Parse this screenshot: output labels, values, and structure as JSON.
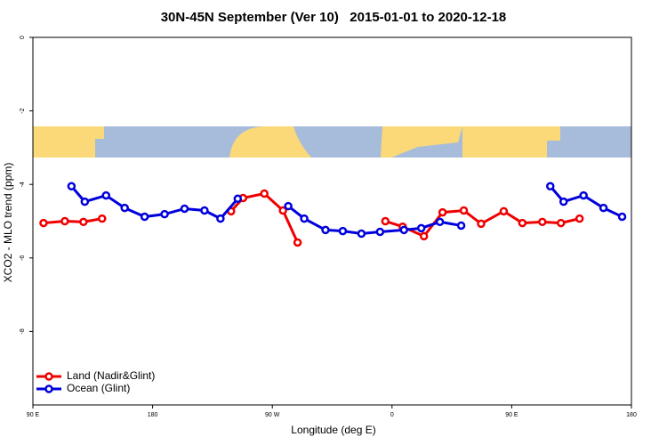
{
  "chart_data": {
    "type": "line",
    "title": "30N-45N September (Ver 10)   2015-01-01 to 2020-12-18",
    "x_label": "Longitude (deg E)",
    "y_label": "XCO2 - MLO trend (ppm)",
    "xlim": [
      90,
      540
    ],
    "xticks": [
      {
        "value": 90,
        "label": "90 E"
      },
      180,
      {
        "value": 270,
        "label": "90 W"
      },
      {
        "value": 360,
        "label": "0"
      },
      {
        "value": 450,
        "label": "90 E"
      },
      {
        "value": 540,
        "label": "180"
      }
    ],
    "ylim": [
      -10,
      0
    ],
    "yticks": [
      0,
      -2,
      -4,
      -6,
      -8
    ],
    "legend": "bottom-left",
    "series": [
      {
        "name": "Land (Nadir&Glint)",
        "color": "#ee0000",
        "x": [
          98,
          114,
          128,
          142,
          null,
          239,
          248,
          264,
          278,
          289,
          null,
          355,
          368,
          384,
          398,
          414,
          427,
          444,
          458,
          473,
          487,
          501
        ],
        "values": [
          -5.05,
          -5.0,
          -5.02,
          -4.93,
          null,
          -4.73,
          -4.37,
          -4.25,
          -4.71,
          -5.58,
          null,
          -5.0,
          -5.15,
          -5.41,
          -4.76,
          -4.71,
          -5.07,
          -4.73,
          -5.05,
          -5.02,
          -5.05,
          -4.93
        ]
      },
      {
        "name": "Ocean (Glint)",
        "color": "#0000dd",
        "x": [
          119,
          129,
          145,
          159,
          174,
          189,
          204,
          219,
          231,
          244,
          null,
          282,
          294,
          310,
          323,
          337,
          351,
          369,
          382,
          396,
          412,
          null,
          479,
          489,
          504,
          519,
          533
        ],
        "values": [
          -4.05,
          -4.47,
          -4.3,
          -4.64,
          -4.88,
          -4.81,
          -4.66,
          -4.71,
          -4.93,
          -4.39,
          null,
          -4.59,
          -4.93,
          -5.24,
          -5.27,
          -5.34,
          -5.29,
          -5.24,
          -5.19,
          -5.02,
          -5.12,
          null,
          -4.05,
          -4.47,
          -4.3,
          -4.64,
          -4.88
        ]
      }
    ]
  }
}
